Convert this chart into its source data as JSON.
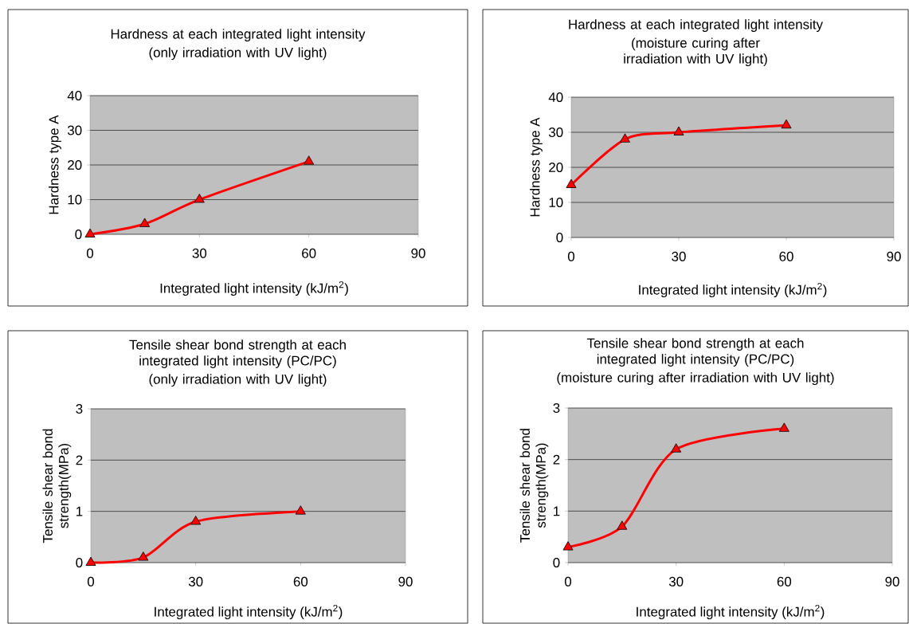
{
  "chart_data": [
    {
      "type": "line",
      "title": "Hardness at each integrated light intensity",
      "subtitle": "(only irradiation with UV light)",
      "xlabel": "Integrated light intensity (kJ/m$^{2}$)",
      "ylabel": "Hardness type A",
      "x": [
        0,
        15,
        30,
        60
      ],
      "series": [
        {
          "color": "#ff0000",
          "values": [
            0,
            3,
            10,
            21
          ]
        }
      ],
      "xlim": [
        0,
        90
      ],
      "ylim": [
        0,
        40
      ],
      "xticks": [
        0,
        30,
        60,
        90
      ],
      "yticks": [
        0,
        10,
        20,
        30,
        40
      ],
      "grid": "y",
      "marker": "triangle",
      "line_style": "solid"
    },
    {
      "type": "line",
      "title": "Hardness at each integrated light intensity",
      "subtitle": "(moisture curing after irradiation with UV light)",
      "xlabel": "Integrated light intensity (kJ/m$^{2}$)",
      "ylabel": "Hardness type A",
      "x": [
        0,
        15,
        30,
        60
      ],
      "series": [
        {
          "color": "#ff0000",
          "values": [
            15,
            28,
            30,
            32
          ]
        }
      ],
      "xlim": [
        0,
        90
      ],
      "ylim": [
        0,
        40
      ],
      "xticks": [
        0,
        30,
        60,
        90
      ],
      "yticks": [
        0,
        10,
        20,
        30,
        40
      ],
      "grid": "y",
      "marker": "triangle",
      "line_style": "solid"
    },
    {
      "type": "line",
      "title": "Tensile shear bond strength at each integrated light intensity  (PC/PC)",
      "subtitle": "(only irradiation with UV light)",
      "xlabel": "Integrated light intensity (kJ/m$^{2}$)",
      "ylabel": "Tensile shear bond strength(MPa)",
      "x": [
        0,
        15,
        30,
        60
      ],
      "series": [
        {
          "color": "#ff0000",
          "values": [
            0,
            0.1,
            0.8,
            1.0
          ]
        }
      ],
      "xlim": [
        0,
        90
      ],
      "ylim": [
        0,
        3
      ],
      "xticks": [
        0,
        30,
        60,
        90
      ],
      "yticks": [
        0,
        1,
        2,
        3
      ],
      "grid": "y",
      "marker": "triangle",
      "line_style": "solid"
    },
    {
      "type": "line",
      "title": "Tensile shear bond strength at each integrated light intensity (PC/PC)",
      "subtitle": "(moisture curing after irradiation with UV light)",
      "xlabel": "Integrated light intensity (kJ/m$^{2}$)",
      "ylabel": "Tensile shear bond strength(MPa)",
      "x": [
        0,
        15,
        30,
        60
      ],
      "series": [
        {
          "color": "#ff0000",
          "values": [
            0.3,
            0.7,
            2.2,
            2.6
          ]
        }
      ],
      "xlim": [
        0,
        90
      ],
      "ylim": [
        0,
        3
      ],
      "xticks": [
        0,
        30,
        60,
        90
      ],
      "yticks": [
        0,
        1,
        2,
        3
      ],
      "grid": "y",
      "marker": "triangle",
      "line_style": "solid"
    }
  ]
}
